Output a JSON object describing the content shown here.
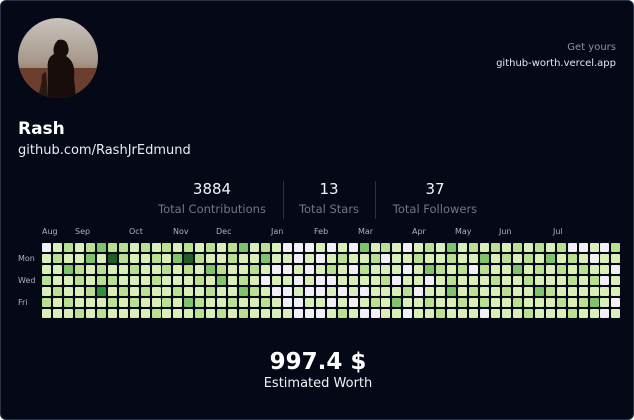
{
  "profile": {
    "name": "Rash",
    "handle": "github.com/RashJrEdmund"
  },
  "promo": {
    "line1": "Get yours",
    "url": "github-worth.vercel.app"
  },
  "stats": [
    {
      "value": "3884",
      "label": "Total Contributions"
    },
    {
      "value": "13",
      "label": "Total Stars"
    },
    {
      "value": "37",
      "label": "Total Followers"
    }
  ],
  "graph": {
    "months": [
      "Aug",
      "Sep",
      "Oct",
      "Nov",
      "Dec",
      "Jan",
      "Feb",
      "Mar",
      "Apr",
      "May",
      "Jun",
      "Jul"
    ],
    "day_labels": [
      "Mon",
      "Wed",
      "Fri"
    ],
    "level_colors": [
      "#f2f0f6",
      "#d9efb7",
      "#b8e08e",
      "#7fc36b",
      "#2f8f3a",
      "#1f5e27"
    ],
    "weeks": [
      [
        0,
        1,
        1,
        2,
        1,
        2,
        1
      ],
      [
        1,
        2,
        1,
        1,
        2,
        1,
        1
      ],
      [
        2,
        1,
        3,
        1,
        1,
        2,
        1
      ],
      [
        1,
        1,
        2,
        2,
        1,
        1,
        2
      ],
      [
        2,
        3,
        1,
        1,
        2,
        1,
        1
      ],
      [
        3,
        1,
        2,
        2,
        4,
        1,
        2
      ],
      [
        2,
        5,
        1,
        2,
        1,
        2,
        1
      ],
      [
        2,
        2,
        1,
        1,
        2,
        1,
        1
      ],
      [
        1,
        1,
        2,
        1,
        1,
        2,
        1
      ],
      [
        2,
        1,
        1,
        1,
        2,
        1,
        1
      ],
      [
        1,
        2,
        1,
        2,
        1,
        1,
        2
      ],
      [
        2,
        1,
        2,
        1,
        1,
        2,
        1
      ],
      [
        1,
        3,
        1,
        1,
        2,
        1,
        1
      ],
      [
        2,
        5,
        2,
        1,
        1,
        3,
        1
      ],
      [
        1,
        2,
        1,
        2,
        1,
        2,
        2
      ],
      [
        2,
        1,
        3,
        1,
        2,
        1,
        1
      ],
      [
        1,
        1,
        2,
        3,
        1,
        1,
        2
      ],
      [
        2,
        2,
        1,
        1,
        1,
        2,
        1
      ],
      [
        3,
        1,
        1,
        2,
        3,
        1,
        2
      ],
      [
        1,
        1,
        2,
        1,
        2,
        1,
        1
      ],
      [
        2,
        3,
        1,
        0,
        1,
        2,
        1
      ],
      [
        1,
        1,
        0,
        1,
        0,
        1,
        1
      ],
      [
        0,
        1,
        0,
        1,
        0,
        0,
        1
      ],
      [
        0,
        0,
        1,
        0,
        1,
        0,
        0
      ],
      [
        0,
        1,
        0,
        1,
        0,
        1,
        0
      ],
      [
        1,
        0,
        1,
        0,
        0,
        1,
        0
      ],
      [
        0,
        1,
        2,
        0,
        1,
        0,
        1
      ],
      [
        1,
        2,
        1,
        1,
        0,
        1,
        2
      ],
      [
        0,
        1,
        0,
        1,
        1,
        0,
        1
      ],
      [
        3,
        1,
        2,
        1,
        0,
        1,
        0
      ],
      [
        1,
        2,
        1,
        1,
        1,
        2,
        0
      ],
      [
        2,
        0,
        1,
        2,
        1,
        1,
        1
      ],
      [
        1,
        1,
        1,
        0,
        1,
        3,
        1
      ],
      [
        0,
        1,
        0,
        1,
        2,
        1,
        0
      ],
      [
        1,
        2,
        1,
        1,
        0,
        1,
        1
      ],
      [
        2,
        1,
        3,
        0,
        1,
        2,
        1
      ],
      [
        1,
        1,
        2,
        1,
        1,
        1,
        2
      ],
      [
        3,
        2,
        1,
        2,
        3,
        1,
        1
      ],
      [
        1,
        1,
        2,
        1,
        1,
        2,
        1
      ],
      [
        2,
        1,
        0,
        1,
        2,
        1,
        1
      ],
      [
        1,
        3,
        2,
        1,
        1,
        2,
        0
      ],
      [
        2,
        1,
        1,
        2,
        1,
        1,
        1
      ],
      [
        1,
        2,
        1,
        1,
        2,
        1,
        1
      ],
      [
        2,
        1,
        3,
        1,
        1,
        2,
        1
      ],
      [
        1,
        2,
        1,
        2,
        1,
        1,
        2
      ],
      [
        2,
        1,
        2,
        1,
        3,
        1,
        1
      ],
      [
        1,
        3,
        1,
        1,
        2,
        1,
        1
      ],
      [
        2,
        1,
        2,
        1,
        1,
        2,
        1
      ],
      [
        0,
        2,
        1,
        2,
        1,
        1,
        2
      ],
      [
        0,
        1,
        2,
        1,
        1,
        2,
        1
      ],
      [
        1,
        0,
        1,
        2,
        1,
        3,
        1
      ],
      [
        0,
        1,
        1,
        0,
        1,
        1,
        0
      ],
      [
        2,
        1,
        0,
        1,
        1,
        0,
        1
      ]
    ]
  },
  "worth": {
    "value": "997.4 $",
    "label": "Estimated Worth"
  }
}
